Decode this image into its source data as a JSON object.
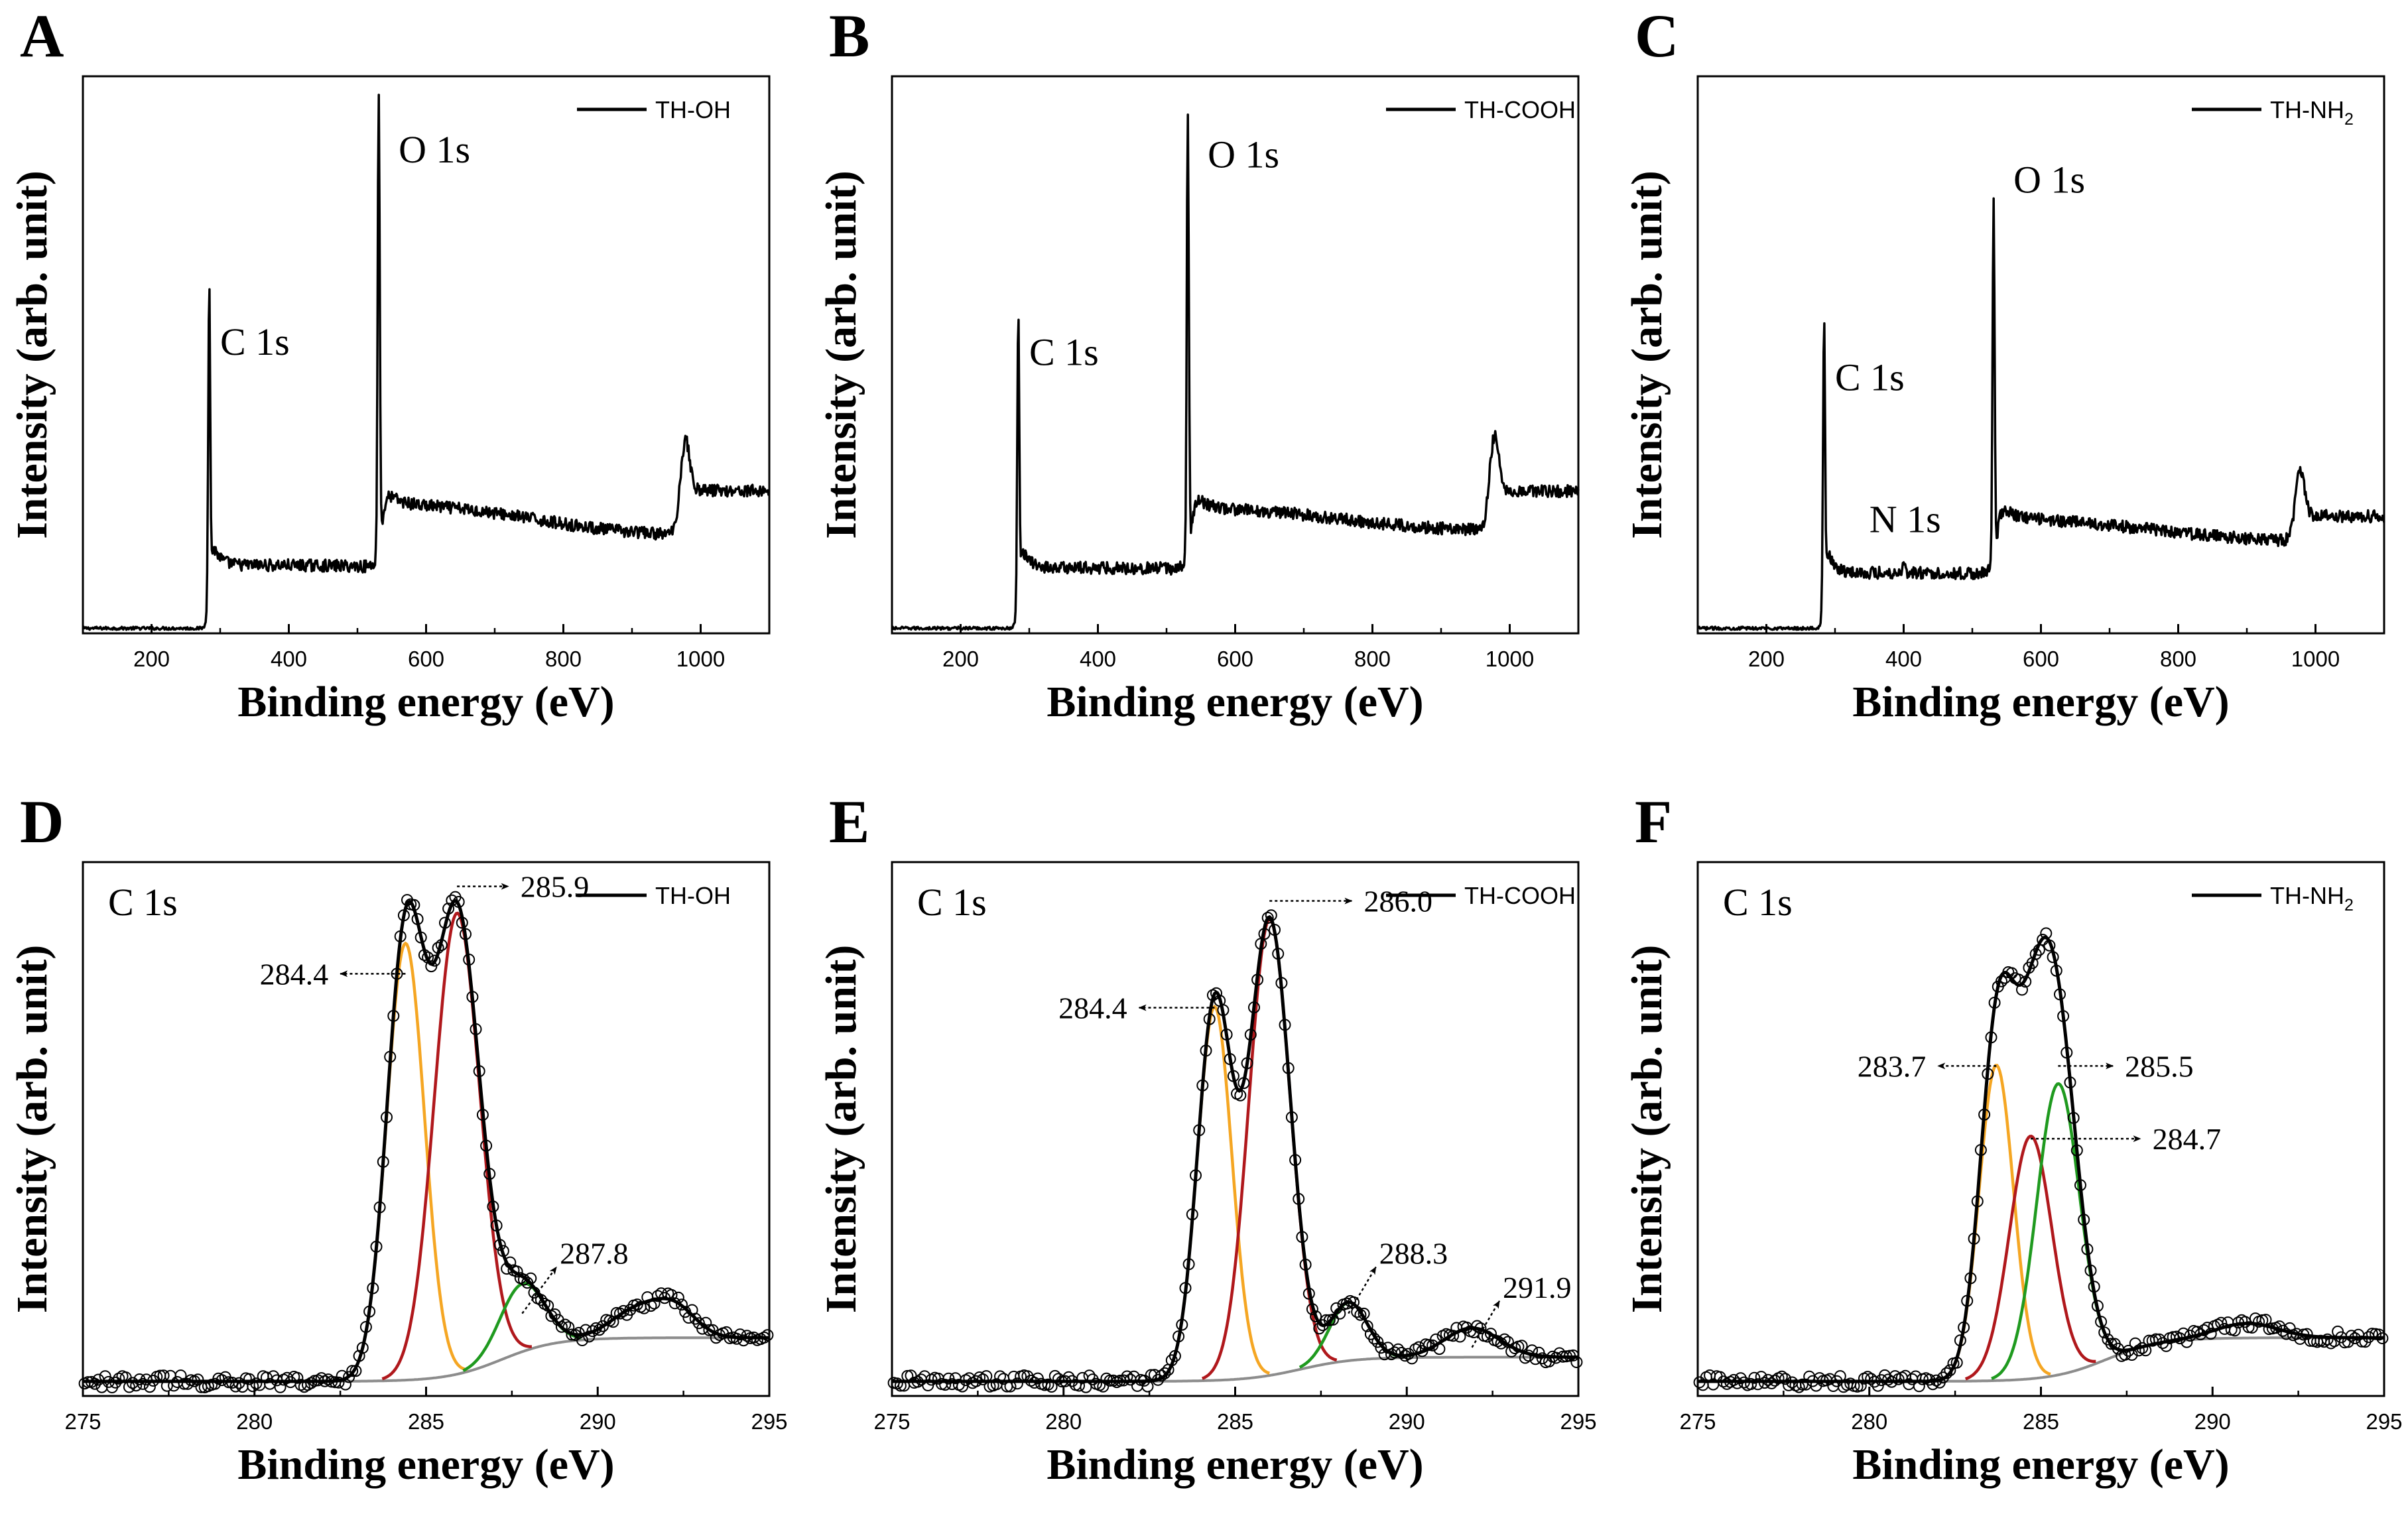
{
  "figure": {
    "panels": [
      "A",
      "B",
      "C",
      "D",
      "E",
      "F"
    ]
  },
  "chart_data": [
    {
      "id": "A",
      "type": "line",
      "panel_label": "A",
      "xlabel": "Binding energy (eV)",
      "ylabel": "Intensity (arb. unit)",
      "xlim": [
        100,
        1100
      ],
      "ylim": [
        0,
        1.1
      ],
      "xticks": [
        200,
        400,
        600,
        800,
        1000
      ],
      "xtick_labels": [
        "200",
        "400",
        "600",
        "800",
        "1000"
      ],
      "legend": {
        "label": "TH-OH",
        "subscript": "",
        "location": "top-right"
      },
      "survey": {
        "base": 0.01,
        "rise_ev": 282,
        "c1s_ev": 284,
        "c1s_height": 0.72,
        "mid_level": 0.135,
        "o1s_ev": 531,
        "o1s_height": 1.04,
        "post_o_level": 0.26,
        "n1s_ev": null,
        "n1s_height": 0,
        "high_level": 0.19,
        "auger_ev": 975,
        "auger_height": 0.38,
        "tail_level": 0.28
      },
      "peak_labels": [
        {
          "text": "C 1s",
          "x": 300,
          "y": 0.55
        },
        {
          "text": "O 1s",
          "x": 560,
          "y": 0.93
        }
      ]
    },
    {
      "id": "B",
      "type": "line",
      "panel_label": "B",
      "xlabel": "Binding energy (eV)",
      "ylabel": "Intensity (arb. unit)",
      "xlim": [
        100,
        1100
      ],
      "ylim": [
        0,
        1.1
      ],
      "xticks": [
        200,
        400,
        600,
        800,
        1000
      ],
      "xtick_labels": [
        "200",
        "400",
        "600",
        "800",
        "1000"
      ],
      "legend": {
        "label": "TH-COOH",
        "subscript": "",
        "location": "top-right"
      },
      "survey": {
        "base": 0.01,
        "rise_ev": 282,
        "c1s_ev": 284,
        "c1s_height": 0.67,
        "mid_level": 0.13,
        "o1s_ev": 531,
        "o1s_height": 0.99,
        "post_o_level": 0.25,
        "n1s_ev": null,
        "n1s_height": 0,
        "high_level": 0.2,
        "auger_ev": 975,
        "auger_height": 0.39,
        "tail_level": 0.28
      },
      "peak_labels": [
        {
          "text": "C 1s",
          "x": 300,
          "y": 0.53
        },
        {
          "text": "O 1s",
          "x": 560,
          "y": 0.92
        }
      ]
    },
    {
      "id": "C",
      "type": "line",
      "panel_label": "C",
      "xlabel": "Binding energy (eV)",
      "ylabel": "Intensity (arb. unit)",
      "xlim": [
        100,
        1100
      ],
      "ylim": [
        0,
        1.1
      ],
      "xticks": [
        200,
        400,
        600,
        800,
        1000
      ],
      "xtick_labels": [
        "200",
        "400",
        "600",
        "800",
        "1000"
      ],
      "legend": {
        "label": "TH-NH",
        "subscript": "2",
        "location": "top-right"
      },
      "survey": {
        "base": 0.01,
        "rise_ev": 282,
        "c1s_ev": 284,
        "c1s_height": 0.65,
        "mid_level": 0.12,
        "o1s_ev": 531,
        "o1s_height": 0.84,
        "post_o_level": 0.23,
        "n1s_ev": 400,
        "n1s_height": 0.03,
        "high_level": 0.18,
        "auger_ev": 975,
        "auger_height": 0.32,
        "tail_level": 0.23
      },
      "peak_labels": [
        {
          "text": "C 1s",
          "x": 300,
          "y": 0.48
        },
        {
          "text": "O 1s",
          "x": 560,
          "y": 0.87
        },
        {
          "text": "N 1s",
          "x": 350,
          "y": 0.2
        }
      ]
    },
    {
      "id": "D",
      "type": "scatter",
      "panel_label": "D",
      "xlabel": "Binding energy (eV)",
      "ylabel": "Intensity (arb. unit)",
      "xlim": [
        275,
        295
      ],
      "ylim": [
        0,
        1.1
      ],
      "xticks": [
        275,
        280,
        285,
        290,
        295
      ],
      "xtick_labels": [
        "275",
        "280",
        "285",
        "290",
        "295"
      ],
      "legend": {
        "label": "TH-OH",
        "subscript": "",
        "location": "top-right"
      },
      "region_label": "C 1s",
      "background": {
        "low": 0.03,
        "high": 0.12,
        "center": 286.3,
        "width": 0.8
      },
      "components": [
        {
          "center": 284.4,
          "height": 0.9,
          "sigma": 0.55,
          "color": "#f5a623"
        },
        {
          "center": 285.9,
          "height": 0.95,
          "sigma": 0.66,
          "color": "#b0181c"
        },
        {
          "center": 287.8,
          "height": 0.14,
          "sigma": 0.65,
          "color": "#1f9a1f"
        }
      ],
      "extra_bumps": [
        {
          "center": 291.2,
          "height": 0.06,
          "sigma": 0.8
        },
        {
          "center": 292.3,
          "height": 0.05,
          "sigma": 0.6
        }
      ],
      "annotations": [
        {
          "text": "285.9",
          "peak_x": 285.9,
          "peak_y": 1.05,
          "dir": "right",
          "len_x": 1.5
        },
        {
          "text": "284.4",
          "peak_x": 284.4,
          "peak_y": 0.87,
          "dir": "left",
          "len_x": 1.9
        },
        {
          "text": "287.8",
          "peak_x": 287.8,
          "peak_y": 0.17,
          "dir": "up-right",
          "len_x": 1.0
        }
      ]
    },
    {
      "id": "E",
      "type": "scatter",
      "panel_label": "E",
      "xlabel": "Binding energy (eV)",
      "ylabel": "Intensity (arb. unit)",
      "xlim": [
        275,
        295
      ],
      "ylim": [
        0,
        1.1
      ],
      "xticks": [
        275,
        280,
        285,
        290,
        295
      ],
      "xtick_labels": [
        "275",
        "280",
        "285",
        "290",
        "295"
      ],
      "legend": {
        "label": "TH-COOH",
        "subscript": "",
        "location": "top-right"
      },
      "region_label": "C 1s",
      "background": {
        "low": 0.03,
        "high": 0.08,
        "center": 286.0,
        "width": 0.8
      },
      "components": [
        {
          "center": 284.4,
          "height": 0.77,
          "sigma": 0.5,
          "color": "#f5a623"
        },
        {
          "center": 286.0,
          "height": 0.94,
          "sigma": 0.6,
          "color": "#b0181c"
        },
        {
          "center": 288.3,
          "height": 0.12,
          "sigma": 0.55,
          "color": "#1f9a1f"
        },
        {
          "center": 291.9,
          "height": 0.06,
          "sigma": 0.8,
          "color": "#1f9a1f"
        }
      ],
      "extra_bumps": [],
      "annotations": [
        {
          "text": "286.0",
          "peak_x": 286.0,
          "peak_y": 1.02,
          "dir": "right",
          "len_x": 2.4
        },
        {
          "text": "284.4",
          "peak_x": 284.4,
          "peak_y": 0.8,
          "dir": "left",
          "len_x": 2.2
        },
        {
          "text": "288.3",
          "peak_x": 288.3,
          "peak_y": 0.17,
          "dir": "up-right",
          "len_x": 0.8
        },
        {
          "text": "291.9",
          "peak_x": 291.9,
          "peak_y": 0.1,
          "dir": "up-right",
          "len_x": 0.8
        }
      ]
    },
    {
      "id": "F",
      "type": "scatter",
      "panel_label": "F",
      "xlabel": "Binding energy (eV)",
      "ylabel": "Intensity (arb. unit)",
      "xlim": [
        275,
        295
      ],
      "ylim": [
        0,
        1.1
      ],
      "xticks": [
        275,
        280,
        285,
        290,
        295
      ],
      "xtick_labels": [
        "275",
        "280",
        "285",
        "290",
        "295"
      ],
      "legend": {
        "label": "TH-NH",
        "subscript": "2",
        "location": "top-right"
      },
      "region_label": "C 1s",
      "background": {
        "low": 0.03,
        "high": 0.12,
        "center": 286.0,
        "width": 0.8
      },
      "components": [
        {
          "center": 283.7,
          "height": 0.65,
          "sigma": 0.5,
          "color": "#f5a623"
        },
        {
          "center": 284.7,
          "height": 0.5,
          "sigma": 0.62,
          "color": "#b0181c"
        },
        {
          "center": 285.5,
          "height": 0.6,
          "sigma": 0.62,
          "color": "#1f9a1f"
        }
      ],
      "extra_bumps": [
        {
          "center": 291.0,
          "height": 0.03,
          "sigma": 0.9
        }
      ],
      "annotations": [
        {
          "text": "283.7",
          "peak_x": 283.7,
          "peak_y": 0.68,
          "dir": "left",
          "len_x": 1.7
        },
        {
          "text": "285.5",
          "peak_x": 285.5,
          "peak_y": 0.68,
          "dir": "right",
          "len_x": 1.6
        },
        {
          "text": "284.7",
          "peak_x": 284.7,
          "peak_y": 0.53,
          "dir": "right",
          "len_x": 3.2
        }
      ]
    }
  ]
}
